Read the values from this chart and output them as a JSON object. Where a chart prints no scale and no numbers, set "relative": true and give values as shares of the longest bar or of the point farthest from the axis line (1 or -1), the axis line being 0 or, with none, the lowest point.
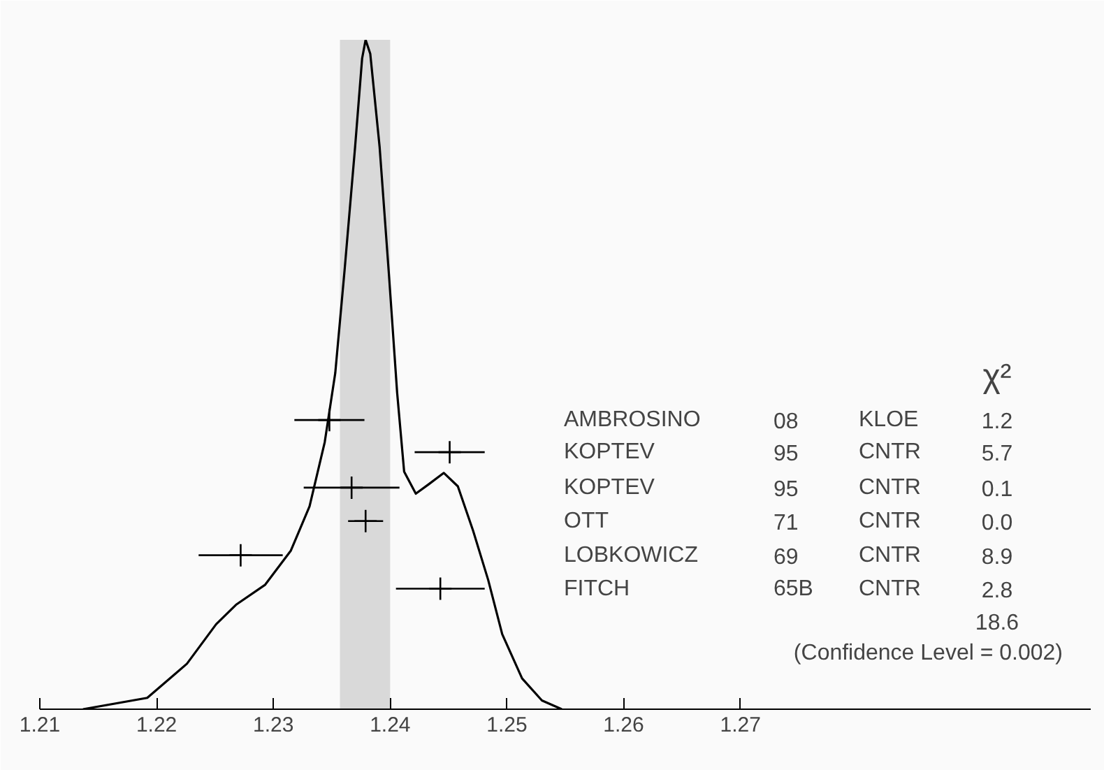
{
  "chart_data": {
    "type": "line",
    "relative": true,
    "xlim": [
      1.21,
      1.3
    ],
    "xticks": [
      1.21,
      1.22,
      1.23,
      1.24,
      1.25,
      1.26,
      1.27
    ],
    "grid": false,
    "bands": [
      {
        "axis": "x",
        "from": 1.2357,
        "to": 1.24,
        "color": "#d9d9d9"
      }
    ],
    "series": [
      {
        "color": "#000000",
        "x": [
          1.2137,
          1.2192,
          1.2226,
          1.2251,
          1.2268,
          1.2293,
          1.2315,
          1.2331,
          1.2344,
          1.2353,
          1.2361,
          1.237,
          1.2376,
          1.2379,
          1.2383,
          1.2391,
          1.2399,
          1.2406,
          1.2412,
          1.2422,
          1.2433,
          1.2446,
          1.2458,
          1.2471,
          1.2484,
          1.2496,
          1.2513,
          1.253,
          1.2547
        ],
        "values": [
          0,
          0.017,
          0.068,
          0.127,
          0.156,
          0.186,
          0.237,
          0.303,
          0.399,
          0.502,
          0.656,
          0.84,
          0.972,
          1,
          0.979,
          0.84,
          0.649,
          0.473,
          0.355,
          0.322,
          0.336,
          0.353,
          0.333,
          0.267,
          0.193,
          0.112,
          0.046,
          0.013,
          0
        ]
      },
      {
        "type": "scatter",
        "marker": "cross",
        "color": "#000000",
        "x": [
          1.2348,
          1.2451,
          1.2367,
          1.2379,
          1.2272,
          1.2443
        ],
        "values": [
          0.432,
          0.384,
          0.331,
          0.281,
          0.23,
          0.18
        ],
        "xerrors": [
          0.003,
          0.003,
          0.0041,
          0.0015,
          0.0036,
          0.0038
        ]
      }
    ],
    "annotations": [
      "χ²",
      "AMBROSINO",
      "08",
      "KLOE",
      "1.2",
      "KOPTEV",
      "95",
      "CNTR",
      "5.7",
      "KOPTEV",
      "95",
      "CNTR",
      "0.1",
      "OTT",
      "71",
      "CNTR",
      "0.0",
      "LOBKOWICZ",
      "69",
      "CNTR",
      "8.9",
      "FITCH",
      "65B",
      "CNTR",
      "2.8",
      "18.6",
      "(Confidence Level = 0.002)"
    ]
  }
}
